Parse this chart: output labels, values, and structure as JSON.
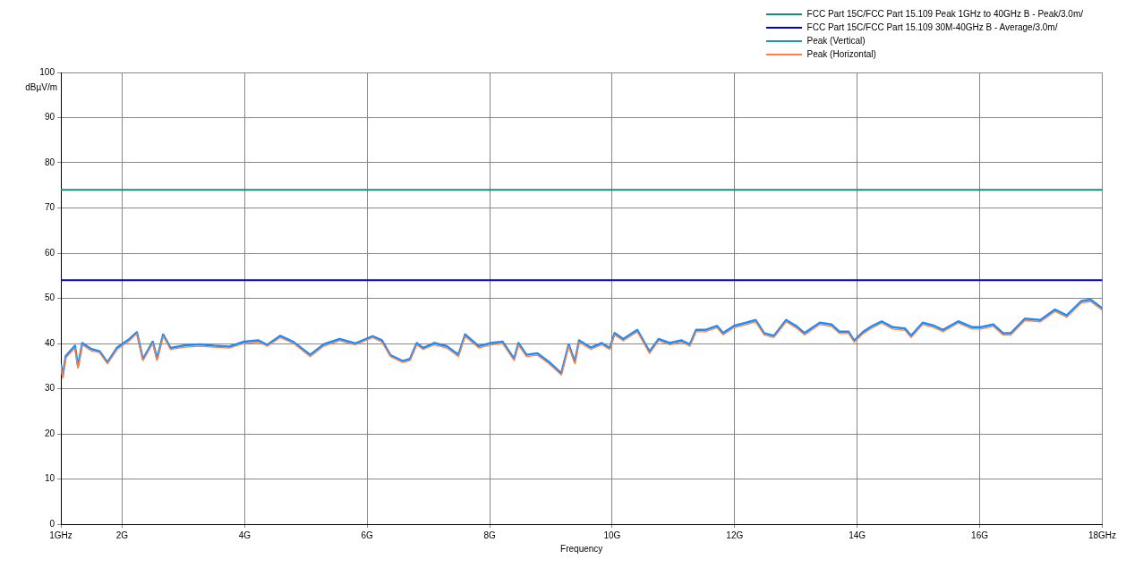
{
  "chart_data": {
    "type": "line",
    "xlabel": "Frequency",
    "ylabel": "dBµV/m",
    "xlim": [
      1,
      18
    ],
    "xticks": [
      {
        "value": 1,
        "label": "1GHz"
      },
      {
        "value": 2,
        "label": "2G"
      },
      {
        "value": 4,
        "label": "4G"
      },
      {
        "value": 6,
        "label": "6G"
      },
      {
        "value": 8,
        "label": "8G"
      },
      {
        "value": 10,
        "label": "10G"
      },
      {
        "value": 12,
        "label": "12G"
      },
      {
        "value": 14,
        "label": "14G"
      },
      {
        "value": 16,
        "label": "16G"
      },
      {
        "value": 18,
        "label": "18GHz"
      }
    ],
    "ylim": [
      0,
      100
    ],
    "yticks": [
      0,
      10,
      20,
      30,
      40,
      50,
      60,
      70,
      80,
      90,
      100
    ],
    "grid": true,
    "legend": "top right",
    "marker": "none",
    "line_style": "solid",
    "x": [
      1.0,
      1.03,
      1.08,
      1.23,
      1.28,
      1.35,
      1.49,
      1.63,
      1.76,
      1.92,
      2.12,
      2.24,
      2.34,
      2.5,
      2.57,
      2.67,
      2.79,
      3.03,
      3.27,
      3.5,
      3.75,
      3.99,
      4.22,
      4.37,
      4.58,
      4.8,
      5.07,
      5.29,
      5.55,
      5.81,
      6.09,
      6.24,
      6.38,
      6.58,
      6.7,
      6.81,
      6.91,
      7.1,
      7.3,
      7.49,
      7.6,
      7.82,
      8.02,
      8.21,
      8.4,
      8.47,
      8.6,
      8.78,
      8.97,
      9.17,
      9.29,
      9.39,
      9.46,
      9.65,
      9.83,
      9.96,
      10.04,
      10.18,
      10.41,
      10.61,
      10.76,
      10.94,
      11.13,
      11.27,
      11.37,
      11.52,
      11.71,
      11.81,
      11.99,
      12.19,
      12.34,
      12.48,
      12.64,
      12.84,
      13,
      13.14,
      13.39,
      13.58,
      13.71,
      13.86,
      13.95,
      14.1,
      14.25,
      14.4,
      14.58,
      14.78,
      14.88,
      15.07,
      15.26,
      15.4,
      15.65,
      15.88,
      16.02,
      16.22,
      16.38,
      16.51,
      16.74,
      16.99,
      17.23,
      17.42,
      17.66,
      17.81,
      18
    ],
    "ref_lines": [
      {
        "axis": "y",
        "value": 74,
        "label": "FCC Part 15C/FCC Part 15.109 Peak 1GHz to 40GHz B - Peak/3.0m/",
        "color": "#1a8a7a"
      },
      {
        "axis": "y",
        "value": 54,
        "label": "FCC Part 15C/FCC Part 15.109 30M-40GHz B - Average/3.0m/",
        "color": "#0000cc"
      }
    ],
    "series": [
      {
        "name": "Peak (Vertical)",
        "color": "#1a8cff",
        "values": [
          35.4,
          32.8,
          37.2,
          39.5,
          34.9,
          40.1,
          38.8,
          38.3,
          35.8,
          39.1,
          41.0,
          42.5,
          36.5,
          40.4,
          36.6,
          42.0,
          39.0,
          39.6,
          39.8,
          39.5,
          39.3,
          40.4,
          40.7,
          39.7,
          41.7,
          40.3,
          37.5,
          39.8,
          41.0,
          40.0,
          41.6,
          40.7,
          37.4,
          36.1,
          36.6,
          40.1,
          39.0,
          40.1,
          39.4,
          37.5,
          42.0,
          39.4,
          40.1,
          40.4,
          36.6,
          40.1,
          37.5,
          37.8,
          35.9,
          33.4,
          39.8,
          35.9,
          40.7,
          39.1,
          40.1,
          39.0,
          42.3,
          41.0,
          43.0,
          38.2,
          41.0,
          40.1,
          40.7,
          39.8,
          43.0,
          43.0,
          43.9,
          42.3,
          43.9,
          44.6,
          45.2,
          42.3,
          41.7,
          45.2,
          43.9,
          42.3,
          44.6,
          44.2,
          42.6,
          42.6,
          40.6,
          42.6,
          43.9,
          44.9,
          43.6,
          43.3,
          41.7,
          44.6,
          43.9,
          43.0,
          44.9,
          43.6,
          43.6,
          44.2,
          42.3,
          42.3,
          45.5,
          45.2,
          47.5,
          46.2,
          49.4,
          49.7,
          47.8
        ]
      },
      {
        "name": "Peak (Horizontal)",
        "color": "#ff8040",
        "values": [
          34.9,
          32.3,
          36.8,
          39,
          34.5,
          39.7,
          38.4,
          38,
          35.5,
          38.7,
          40.6,
          42.2,
          36.2,
          40,
          36.2,
          41.6,
          38.7,
          39.2,
          39.4,
          39.2,
          39,
          40,
          40.3,
          39.4,
          41.3,
          40,
          37.1,
          39.4,
          40.6,
          39.7,
          41.3,
          40.3,
          37.1,
          35.8,
          36.2,
          39.7,
          38.7,
          39.7,
          39,
          37.1,
          41.6,
          39,
          39.7,
          40,
          36.2,
          39.7,
          37.1,
          37.4,
          35.5,
          33,
          39.4,
          35.5,
          40.3,
          38.7,
          39.7,
          38.7,
          41.9,
          40.6,
          42.6,
          37.8,
          40.6,
          39.7,
          40.3,
          39.4,
          42.6,
          42.6,
          43.5,
          41.9,
          43.5,
          44.2,
          44.8,
          41.9,
          41.3,
          44.8,
          43.5,
          41.9,
          44.2,
          43.8,
          42.2,
          42.2,
          40.3,
          42.2,
          43.5,
          44.5,
          43.2,
          42.9,
          41.3,
          44.2,
          43.5,
          42.6,
          44.5,
          43.2,
          43.2,
          43.8,
          41.9,
          41.9,
          45.1,
          44.8,
          47.1,
          45.8,
          49,
          49.3,
          47.4
        ]
      }
    ]
  }
}
